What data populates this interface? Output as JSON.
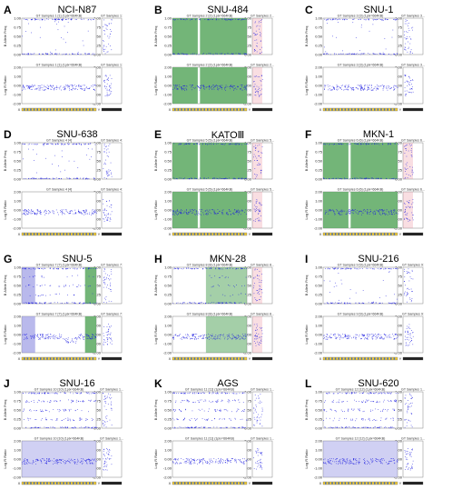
{
  "figure": {
    "panels": [
      {
        "letter": "A",
        "title": "NCI-N87",
        "header": "GT Samples 1 [1]  (1pix=664KB)",
        "header_side": "GT Samples 1:",
        "header_low": "GT Samples 1 [1]  (1pix=664KB)",
        "header_low_side": "GT Samples 1:",
        "profile": "sparse",
        "shade": "none"
      },
      {
        "letter": "B",
        "title": "SNU-484",
        "header": "GT Samples 2 [2]  (1pix=664KB)",
        "header_side": "GT Samples 2...",
        "header_low": "GT Samples 2 [2]  (1pix=664KB)",
        "header_low_side": "GT Samples 2...",
        "profile": "loh",
        "shade": "green"
      },
      {
        "letter": "C",
        "title": "SNU-1",
        "header": "GT Samples 3 [3]  (1pix=664KB)",
        "header_side": "GT Samples 3...",
        "header_low": "GT Samples 3 [3]  (1pix=664KB)",
        "header_low_side": "GT Samples 3...",
        "profile": "sparse",
        "shade": "none"
      },
      {
        "letter": "D",
        "title": "SNU-638",
        "header": "GT Samples 4 [4]",
        "header_side": "GT Samples 4:",
        "header_low": "GT Samples 4 [4]",
        "header_low_side": "GT Samples 4:",
        "profile": "sparse",
        "shade": "none"
      },
      {
        "letter": "E",
        "title": "KATOⅢ",
        "header": "GT Samples 5 [5]  (1pix=664KB)",
        "header_side": "GT Samples 5...",
        "header_low": "GT Samples 5 [5]  (1pix=664KB)",
        "header_low_side": "GT Samples 5...",
        "profile": "loh",
        "shade": "green"
      },
      {
        "letter": "F",
        "title": "MKN-1",
        "header": "GT Samples 6 [6]  (1pix=664KB)",
        "header_side": "GT Samples 6...",
        "header_low": "GT Samples 6 [6]  (1pix=664KB)",
        "header_low_side": "GT Samples 6...",
        "profile": "loh",
        "shade": "green"
      },
      {
        "letter": "G",
        "title": "SNU-5",
        "header": "GT Samples 7 [7]  (1pix=664KB)",
        "header_side": "GT Samples 7:",
        "header_low": "GT Samples 7 [7]  (1pix=664KB)",
        "header_low_side": "GT Samples 7:",
        "profile": "mixed",
        "shade": "blue"
      },
      {
        "letter": "H",
        "title": "MKN-28",
        "header": "GT Samples 8 [8]  (1pix=664KB)",
        "header_side": "GT Samples 8...",
        "header_low": "GT Samples 8 [8]  (1pix=664KB)",
        "header_low_side": "GT Samples 8...",
        "profile": "partial",
        "shade": "green-right"
      },
      {
        "letter": "I",
        "title": "SNU-216",
        "header": "GT Samples 9 [9]  (1pix=664KB)",
        "header_side": "GT Samples 9:",
        "header_low": "GT Samples 9 [9]  (1pix=664KB)",
        "header_low_side": "GT Samples 9:",
        "profile": "sparse",
        "shade": "none"
      },
      {
        "letter": "J",
        "title": "SNU-16",
        "header": "GT Samples 10 [10]  (1pix=664KB)",
        "header_side": "GT Samples 1...",
        "header_low": "GT Samples 10 [10]  (1pix=664KB)",
        "header_low_side": "GT Samples 1...",
        "profile": "het",
        "shade": "blue"
      },
      {
        "letter": "K",
        "title": "AGS",
        "header": "GT Samples 11 [11]  (1pix=664KB)",
        "header_side": "GT Samples 1...",
        "header_low": "GT Samples 11 [11]  (1pix=664KB)",
        "header_low_side": "GT Samples 1...",
        "profile": "het",
        "shade": "none"
      },
      {
        "letter": "L",
        "title": "SNU-620",
        "header": "GT Samples 12 [12]  (1pix=664KB)",
        "header_side": "GT Samples 1...",
        "header_low": "GT Samples 12 [12]  (1pix=664KB)",
        "header_low_side": "GT Samples 1...",
        "profile": "het",
        "shade": "blue"
      }
    ],
    "y_top_label": "B Allele Freq",
    "y_bottom_label": "Log R Ratio",
    "y_top_ticks": [
      "1.00",
      "0.75",
      "0.50",
      "0.25",
      "0.00"
    ],
    "y_bottom_ticks": [
      "2.00",
      "1.00",
      "0.00",
      "-1.00",
      "-2.00"
    ],
    "chrom_labels": {
      "x": "X",
      "y": "Y"
    },
    "colors": {
      "points": "#1a1adf",
      "green": "#5aa860",
      "blue": "#8a8ae0",
      "pink": "#e87a8a",
      "bar": "#f2cc3a"
    }
  }
}
